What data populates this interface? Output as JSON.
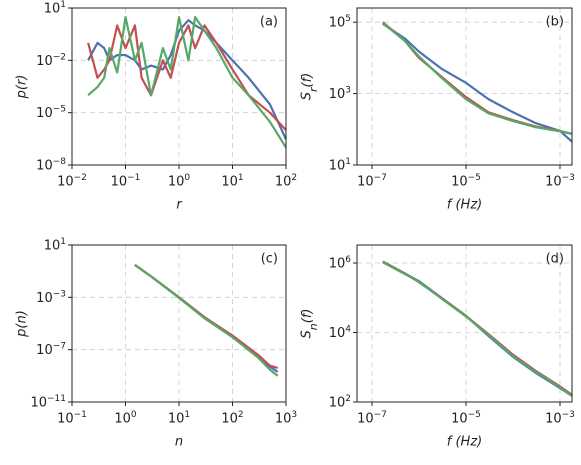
{
  "chart_data": [
    {
      "type": "line",
      "xlabel": "r",
      "ylabel": "p(r)",
      "annotation": "(a)",
      "xscale": "log",
      "yscale": "log",
      "grid": true,
      "xlim": [
        0.01,
        100
      ],
      "ylim": [
        1e-08,
        10
      ],
      "xticks": [
        {
          "value": 0.01,
          "label": "10^−2"
        },
        {
          "value": 0.1,
          "label": "10^−1"
        },
        {
          "value": 1,
          "label": "10^0"
        },
        {
          "value": 10,
          "label": "10^1"
        },
        {
          "value": 100,
          "label": "10^2"
        }
      ],
      "yticks": [
        {
          "value": 1e-08,
          "label": "10^−8"
        },
        {
          "value": 1e-05,
          "label": "10^−5"
        },
        {
          "value": 0.01,
          "label": "10^−2"
        },
        {
          "value": 10,
          "label": "10^1"
        }
      ],
      "x": [
        0.02,
        0.03,
        0.04,
        0.05,
        0.07,
        0.1,
        0.15,
        0.2,
        0.3,
        0.5,
        0.7,
        1,
        1.5,
        2,
        3,
        5,
        10,
        20,
        50,
        100
      ],
      "series": [
        {
          "name": "blue",
          "color": "#4c72b0",
          "values": [
            0.01,
            0.1,
            0.05,
            0.01,
            0.02,
            0.02,
            0.01,
            0.003,
            0.005,
            0.003,
            0.02,
            0.5,
            2,
            1,
            0.5,
            0.1,
            0.01,
            0.001,
            3e-05,
            3e-07
          ]
        },
        {
          "name": "red",
          "color": "#c44e52",
          "values": [
            0.1,
            0.001,
            0.003,
            0.01,
            1,
            0.05,
            1,
            0.001,
            0.0001,
            0.01,
            0.001,
            0.1,
            1,
            0.05,
            1,
            0.1,
            0.003,
            0.0001,
            1e-05,
            1e-06
          ]
        },
        {
          "name": "green",
          "color": "#55a868",
          "values": [
            0.0001,
            0.0003,
            0.001,
            0.05,
            0.002,
            3,
            0.01,
            0.1,
            0.0001,
            0.05,
            0.003,
            3,
            0.01,
            3,
            0.5,
            0.05,
            0.001,
            0.0001,
            3e-06,
            1e-07
          ]
        }
      ]
    },
    {
      "type": "line",
      "xlabel": "f (Hz)",
      "ylabel": "S_r(f)",
      "annotation": "(b)",
      "xscale": "log",
      "yscale": "log",
      "grid": true,
      "xlim": [
        4.8e-08,
        0.0018
      ],
      "ylim": [
        10,
        250000
      ],
      "xticks": [
        {
          "value": 1e-07,
          "label": "10^−7"
        },
        {
          "value": 1e-05,
          "label": "10^−5"
        },
        {
          "value": 0.001,
          "label": "10^−3"
        }
      ],
      "yticks": [
        {
          "value": 10,
          "label": "10^1"
        },
        {
          "value": 1000,
          "label": "10^3"
        },
        {
          "value": 100000,
          "label": "10^5"
        }
      ],
      "x": [
        1.7e-07,
        5e-07,
        1e-06,
        3e-06,
        1e-05,
        3e-05,
        0.0001,
        0.0003,
        0.001,
        0.0018
      ],
      "series": [
        {
          "name": "blue",
          "color": "#4c72b0",
          "values": [
            90000,
            35000,
            15000,
            5000,
            2000,
            700,
            300,
            150,
            90,
            45
          ]
        },
        {
          "name": "red",
          "color": "#c44e52",
          "values": [
            100000,
            30000,
            10000,
            3000,
            800,
            300,
            180,
            120,
            90,
            75
          ]
        },
        {
          "name": "green",
          "color": "#55a868",
          "values": [
            95000,
            30000,
            11000,
            2800,
            700,
            280,
            170,
            115,
            88,
            74
          ]
        }
      ]
    },
    {
      "type": "line",
      "xlabel": "n",
      "ylabel": "p(n)",
      "annotation": "(c)",
      "xscale": "log",
      "yscale": "log",
      "grid": true,
      "xlim": [
        0.1,
        1000
      ],
      "ylim": [
        1e-11,
        10
      ],
      "xticks": [
        {
          "value": 0.1,
          "label": "10^−1"
        },
        {
          "value": 1,
          "label": "10^0"
        },
        {
          "value": 10,
          "label": "10^1"
        },
        {
          "value": 100,
          "label": "10^2"
        },
        {
          "value": 1000,
          "label": "10^3"
        }
      ],
      "yticks": [
        {
          "value": 1e-11,
          "label": "10^−11"
        },
        {
          "value": 1e-07,
          "label": "10^−7"
        },
        {
          "value": 0.001,
          "label": "10^−3"
        },
        {
          "value": 10,
          "label": "10^1"
        }
      ],
      "x": [
        1.5,
        3,
        10,
        30,
        100,
        300,
        500,
        700
      ],
      "series": [
        {
          "name": "blue",
          "color": "#4c72b0",
          "values": [
            0.3,
            0.04,
            0.001,
            3e-05,
            1e-06,
            3e-08,
            5e-09,
            2e-09
          ]
        },
        {
          "name": "red",
          "color": "#c44e52",
          "values": [
            0.3,
            0.04,
            0.001,
            3e-05,
            1.2e-06,
            4e-08,
            6e-09,
            4e-09
          ]
        },
        {
          "name": "green",
          "color": "#55a868",
          "values": [
            0.3,
            0.04,
            0.0009,
            2.5e-05,
            9e-07,
            2.5e-08,
            3e-09,
            1e-09
          ]
        }
      ]
    },
    {
      "type": "line",
      "xlabel": "f (Hz)",
      "ylabel": "S_n(f)",
      "annotation": "(d)",
      "xscale": "log",
      "yscale": "log",
      "grid": true,
      "xlim": [
        4.8e-08,
        0.0018
      ],
      "ylim": [
        100,
        3300000
      ],
      "xticks": [
        {
          "value": 1e-07,
          "label": "10^−7"
        },
        {
          "value": 1e-05,
          "label": "10^−5"
        },
        {
          "value": 0.001,
          "label": "10^−3"
        }
      ],
      "yticks": [
        {
          "value": 100,
          "label": "10^2"
        },
        {
          "value": 10000,
          "label": "10^4"
        },
        {
          "value": 1000000,
          "label": "10^6"
        }
      ],
      "x": [
        1.7e-07,
        5e-07,
        1e-06,
        3e-06,
        1e-05,
        3e-05,
        0.0001,
        0.0003,
        0.001,
        0.0018
      ],
      "series": [
        {
          "name": "blue",
          "color": "#4c72b0",
          "values": [
            1100000,
            500000,
            300000,
            100000,
            30000,
            8000,
            2000,
            700,
            250,
            150
          ]
        },
        {
          "name": "red",
          "color": "#c44e52",
          "values": [
            1100000,
            500000,
            280000,
            100000,
            30000,
            9000,
            2300,
            800,
            280,
            160
          ]
        },
        {
          "name": "green",
          "color": "#55a868",
          "values": [
            1050000,
            480000,
            290000,
            95000,
            29000,
            8500,
            2100,
            750,
            260,
            150
          ]
        }
      ]
    }
  ]
}
